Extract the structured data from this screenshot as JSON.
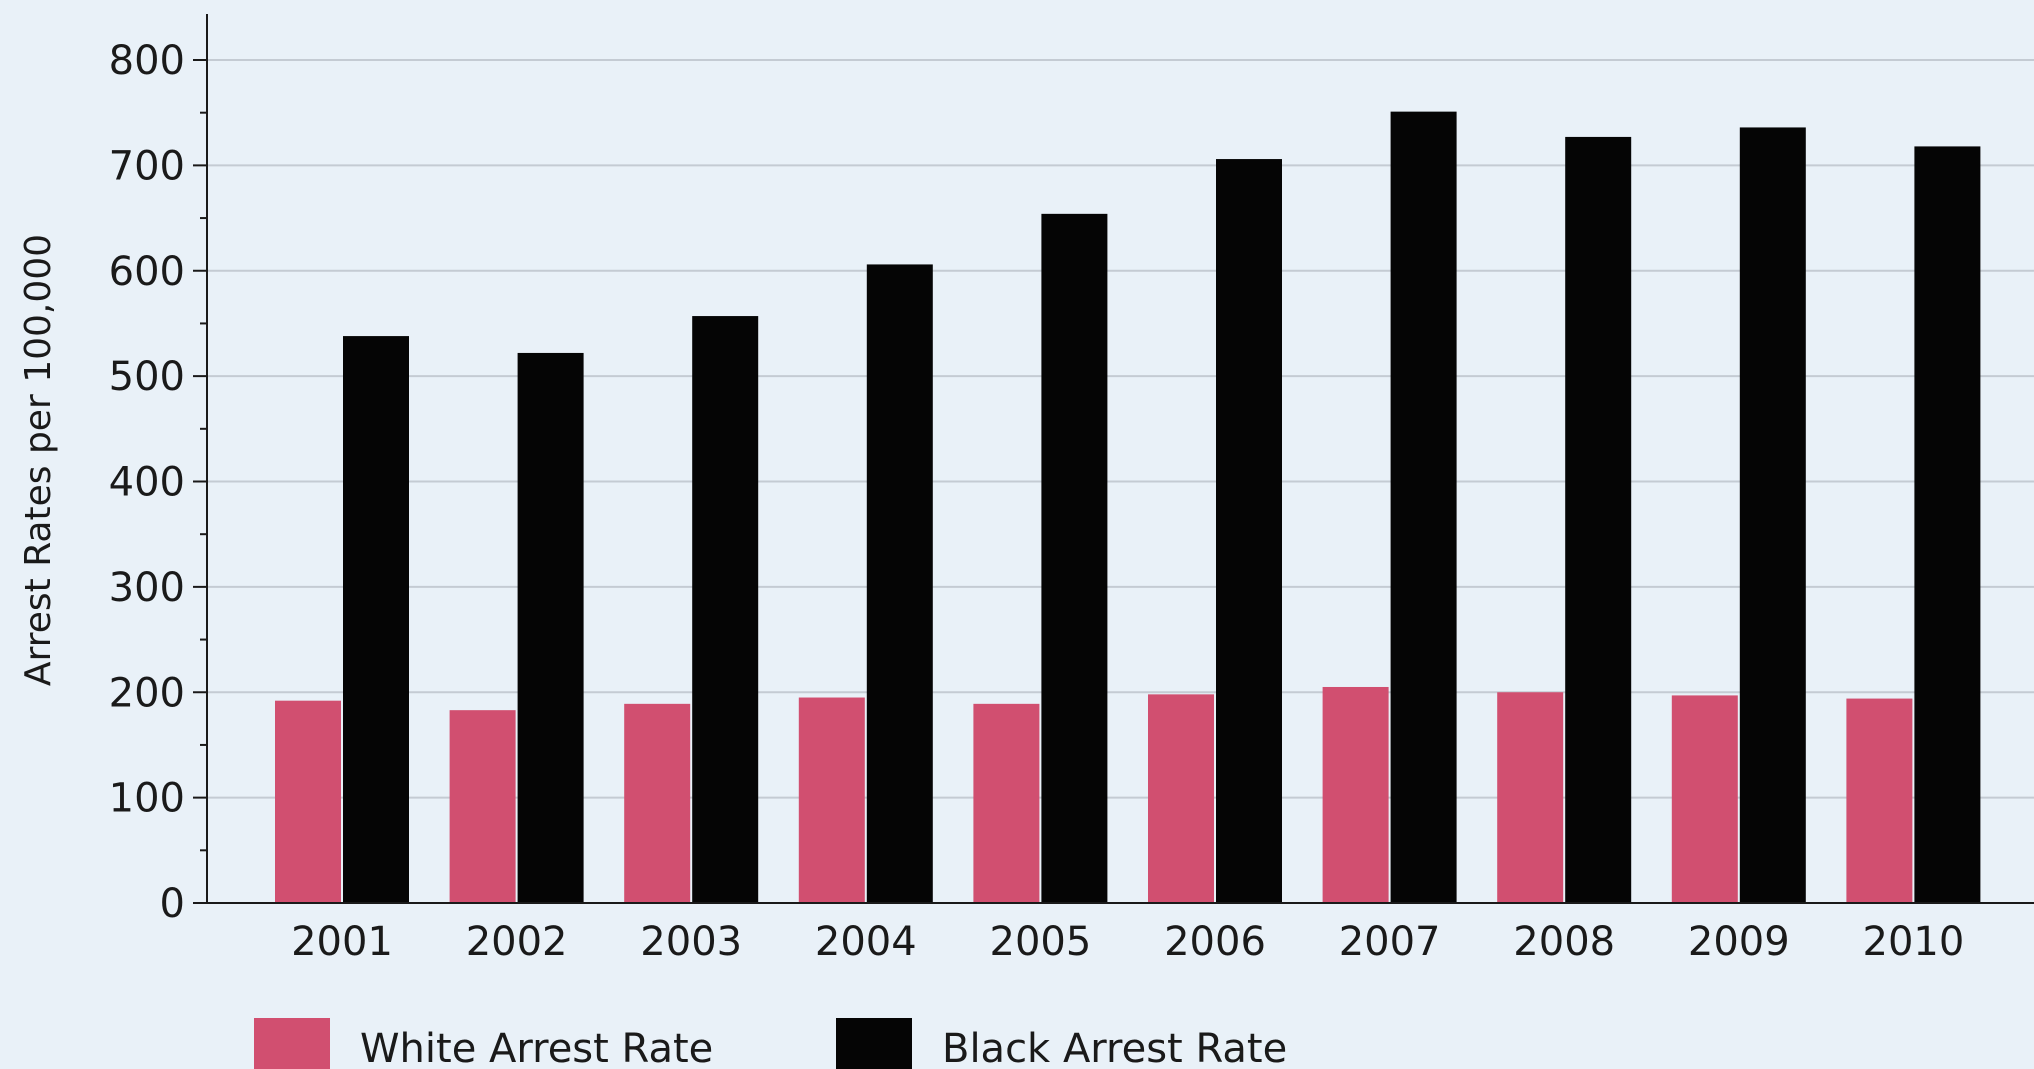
{
  "chart_data": {
    "type": "bar",
    "ylabel": "Arrest Rates per 100,000",
    "ylim": [
      0,
      800
    ],
    "y_ticks": [
      "0",
      "100",
      "200",
      "300",
      "400",
      "500",
      "600",
      "700",
      "800"
    ],
    "grid": true,
    "legend_position": "bottom-left",
    "categories": [
      "2001",
      "2002",
      "2003",
      "2004",
      "2005",
      "2006",
      "2007",
      "2008",
      "2009",
      "2010"
    ],
    "series": [
      {
        "name": "White Arrest Rate",
        "color": "#d14f70",
        "values": [
          192,
          183,
          189,
          195,
          189,
          198,
          205,
          200,
          197,
          194
        ]
      },
      {
        "name": "Black Arrest Rate",
        "color": "#050505",
        "values": [
          538,
          522,
          557,
          606,
          654,
          706,
          751,
          727,
          736,
          718
        ]
      }
    ]
  }
}
